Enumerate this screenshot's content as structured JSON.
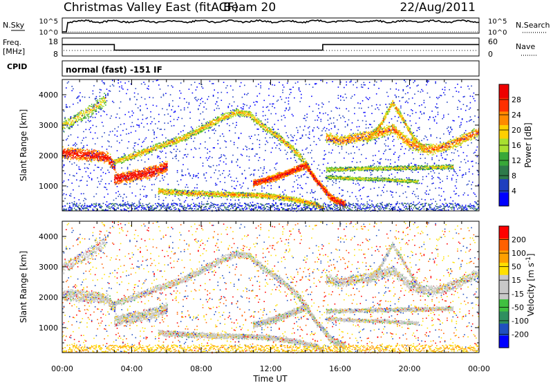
{
  "header": {
    "station": "Christmas Valley East (fitACF)",
    "beam": "Beam 20",
    "date": "22/Aug/2011"
  },
  "summary_panels": {
    "nsky": {
      "label": "N.Sky",
      "yticks": [
        "10^5",
        "10^0"
      ]
    },
    "nsearch": {
      "label": "N.Search",
      "yticks": [
        "10^5",
        "10^0"
      ]
    },
    "freq": {
      "label_top": "Freq.",
      "label_bottom": "[MHz]",
      "yticks": [
        "18",
        "8"
      ],
      "segments": [
        {
          "from_h": 0,
          "to_h": 3,
          "value_mhz": 15
        },
        {
          "from_h": 3,
          "to_h": 15,
          "value_mhz": 10.5
        },
        {
          "from_h": 15,
          "to_h": 24,
          "value_mhz": 15
        }
      ]
    },
    "nave": {
      "label": "Nave",
      "yticks": [
        "60",
        "0"
      ]
    },
    "cpid": {
      "label": "CPID",
      "mode": "normal (fast) -151 IF"
    }
  },
  "chart_data": [
    {
      "type": "heatmap",
      "name": "power",
      "ylabel": "Slant Range [km]",
      "colorbar_label": "Power [dB]",
      "colorbar_ticks": [
        "28",
        "24",
        "20",
        "16",
        "12",
        "8",
        "4"
      ],
      "colors": [
        "#0000ff",
        "#1f3fbf",
        "#2e7a4a",
        "#38a838",
        "#a8e030",
        "#ffd000",
        "#ff8a00",
        "#ff3000",
        "#ee0000"
      ],
      "xlim_hours": [
        0,
        24
      ],
      "ylim_km": [
        180,
        4500
      ],
      "yticks": [
        "1000",
        "2000",
        "3000",
        "4000"
      ],
      "features": [
        {
          "t": [
            0,
            1,
            2,
            2.6,
            3
          ],
          "r": [
            2100,
            2050,
            2000,
            1950,
            1650
          ],
          "w": 180,
          "strength": 0.85
        },
        {
          "t": [
            3,
            4,
            5,
            6
          ],
          "r": [
            1250,
            1350,
            1450,
            1650
          ],
          "w": 180,
          "strength": 0.9
        },
        {
          "t": [
            3,
            4,
            5,
            6,
            7,
            8,
            9,
            10,
            10.8,
            11.5,
            12.5,
            13.5,
            14.2
          ],
          "r": [
            1800,
            2000,
            2200,
            2400,
            2600,
            2900,
            3200,
            3450,
            3350,
            3000,
            2600,
            2100,
            1600
          ],
          "w": 110,
          "strength": 0.45
        },
        {
          "t": [
            5.5,
            6.5,
            7.5,
            8.5,
            9.5,
            10.5,
            11.5,
            12.5,
            13.5,
            14.5,
            15
          ],
          "r": [
            850,
            800,
            770,
            750,
            730,
            720,
            700,
            650,
            550,
            420,
            280
          ],
          "w": 90,
          "strength": 0.5
        },
        {
          "t": [
            11,
            12,
            13,
            14,
            14.6,
            15.5,
            16.3
          ],
          "r": [
            1100,
            1250,
            1450,
            1700,
            1200,
            600,
            400
          ],
          "w": 110,
          "strength": 0.85
        },
        {
          "t": [
            15.2,
            16,
            17,
            18,
            19,
            20,
            21,
            22,
            23,
            24
          ],
          "r": [
            2600,
            2500,
            2600,
            2700,
            2900,
            2400,
            2200,
            2300,
            2550,
            2800
          ],
          "w": 160,
          "strength": 0.6
        },
        {
          "t": [
            17.5,
            18.3,
            19,
            19.6,
            20.2,
            20.8
          ],
          "r": [
            2500,
            3000,
            3750,
            3200,
            2600,
            2200
          ],
          "w": 100,
          "strength": 0.5
        },
        {
          "t": [
            15.2,
            17,
            19,
            21,
            22.5
          ],
          "r": [
            1550,
            1580,
            1600,
            1620,
            1650
          ],
          "w": 70,
          "strength": 0.35
        },
        {
          "t": [
            15.2,
            17,
            18.5,
            20.5
          ],
          "r": [
            1300,
            1250,
            1230,
            1150
          ],
          "w": 60,
          "strength": 0.3
        },
        {
          "t": [
            0,
            1,
            2,
            2.5
          ],
          "r": [
            3000,
            3300,
            3650,
            3900
          ],
          "w": 200,
          "strength": 0.35
        }
      ]
    },
    {
      "type": "heatmap",
      "name": "velocity",
      "ylabel": "Slant Range [km]",
      "colorbar_label": "Velocity [m s-1]",
      "colorbar_ticks": [
        "200",
        "100",
        "50",
        "15",
        "-15",
        "-50",
        "-100",
        "-200"
      ],
      "colors": [
        "#ff0000",
        "#ff6000",
        "#ffa000",
        "#ffe000",
        "#c8c8c8",
        "#c8c8c8",
        "#40c040",
        "#2f8f5f",
        "#2050c0",
        "#0000ff"
      ],
      "xlim_hours": [
        0,
        24
      ],
      "ylim_km": [
        180,
        4500
      ],
      "yticks": [
        "1000",
        "2000",
        "3000",
        "4000"
      ],
      "xticks": [
        "00:00",
        "04:00",
        "08:00",
        "12:00",
        "16:00",
        "20:00",
        "00:00"
      ],
      "xlabel": "Time UT"
    }
  ]
}
